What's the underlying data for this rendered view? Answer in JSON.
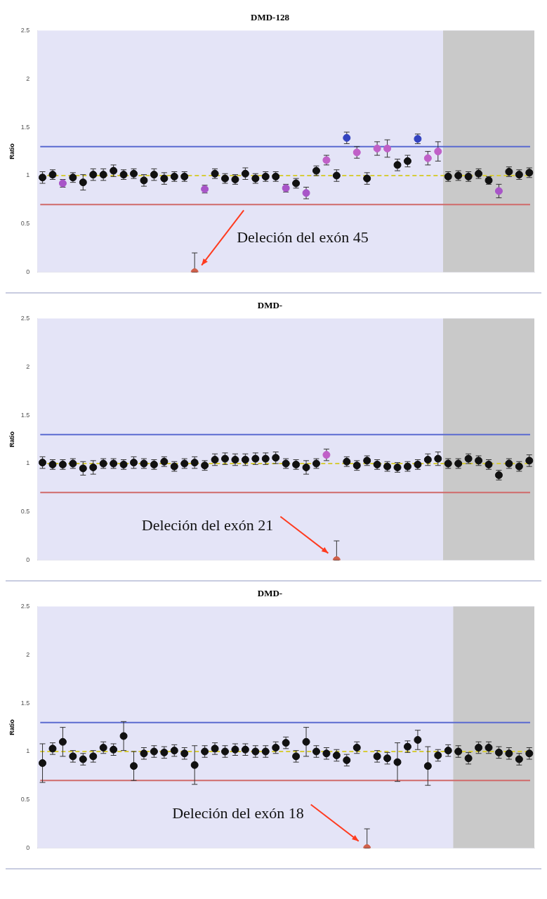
{
  "chart_data": [
    {
      "type": "scatter",
      "title": "DMD-128",
      "ylabel": "Ratio",
      "marker": "circle",
      "grid": false,
      "legend": false,
      "categories": [
        null,
        null,
        null,
        null,
        null,
        null,
        null,
        null,
        null,
        null,
        null,
        null,
        null,
        null,
        null,
        null,
        null,
        null,
        null,
        null,
        null,
        null,
        null,
        null,
        null,
        null,
        null,
        null,
        null,
        null,
        null,
        null,
        null,
        null,
        null,
        null,
        null,
        null,
        null,
        null,
        null,
        null,
        null,
        null,
        null,
        null,
        null,
        null,
        null
      ],
      "series": [
        {
          "values": [
            0.98,
            1.01,
            0.92,
            0.98,
            0.93,
            1.01,
            1.01,
            1.05,
            1.01,
            1.02,
            0.95,
            1.01,
            0.97,
            0.99,
            0.99,
            0,
            0.86,
            1.02,
            0.97,
            0.96,
            1.02,
            0.97,
            0.99,
            0.99,
            0.87,
            0.92,
            0.82,
            1.05,
            1.16,
            1.0,
            1.39,
            1.24,
            0.97,
            1.28,
            1.28,
            1.11,
            1.15,
            1.38,
            1.18,
            1.25,
            0.99,
            1.0,
            0.99,
            1.02,
            0.95,
            0.84,
            1.04,
            1.01,
            1.03
          ],
          "colors": [
            "#111111",
            "#111111",
            "#a855c8",
            "#111111",
            "#111111",
            "#111111",
            "#111111",
            "#111111",
            "#111111",
            "#111111",
            "#111111",
            "#111111",
            "#111111",
            "#111111",
            "#111111",
            "#d0604a",
            "#a855c8",
            "#111111",
            "#111111",
            "#111111",
            "#111111",
            "#111111",
            "#111111",
            "#111111",
            "#a855c8",
            "#111111",
            "#a855c8",
            "#111111",
            "#c060c8",
            "#111111",
            "#3343c0",
            "#c060c8",
            "#111111",
            "#c060c8",
            "#c060c8",
            "#111111",
            "#111111",
            "#3343c0",
            "#c060c8",
            "#c060c8",
            "#111111",
            "#111111",
            "#111111",
            "#111111",
            "#111111",
            "#a855c8",
            "#111111",
            "#111111",
            "#111111"
          ],
          "errors": [
            0.06,
            0.05,
            0.04,
            0.05,
            0.08,
            0.06,
            0.06,
            0.06,
            0.05,
            0.05,
            0.06,
            0.06,
            0.06,
            0.05,
            0.05,
            [
              0,
              0.2
            ],
            0.04,
            0.05,
            0.05,
            0.05,
            0.06,
            0.05,
            0.05,
            0.05,
            0.04,
            0.05,
            0.06,
            0.05,
            0.05,
            0.06,
            0.06,
            0.06,
            0.06,
            0.07,
            0.09,
            0.06,
            0.06,
            0.05,
            0.07,
            0.1,
            0.05,
            0.05,
            0.05,
            0.05,
            0.04,
            0.07,
            0.05,
            0.05,
            0.05
          ]
        }
      ],
      "ylim": [
        0,
        2.5
      ],
      "yticks": [
        0,
        0.5,
        1,
        1.5,
        2,
        2.5
      ],
      "ref_lines": [
        {
          "axis": "y",
          "value": 1.3,
          "color": "#5a6ad0"
        },
        {
          "axis": "y",
          "value": 0.7,
          "color": "#d06a6a"
        },
        {
          "axis": "y",
          "value": 1,
          "color": "#d6cc3a",
          "line_style": "dashed"
        }
      ],
      "annotations": [
        "Deleción del exón 45"
      ]
    },
    {
      "type": "scatter",
      "title": "DMD-",
      "ylabel": "Ratio",
      "marker": "circle",
      "grid": false,
      "legend": false,
      "categories": [
        null,
        null,
        null,
        null,
        null,
        null,
        null,
        null,
        null,
        null,
        null,
        null,
        null,
        null,
        null,
        null,
        null,
        null,
        null,
        null,
        null,
        null,
        null,
        null,
        null,
        null,
        null,
        null,
        null,
        null,
        null,
        null,
        null,
        null,
        null,
        null,
        null,
        null,
        null,
        null,
        null,
        null,
        null,
        null,
        null,
        null,
        null,
        null,
        null
      ],
      "series": [
        {
          "values": [
            1.01,
            0.99,
            0.99,
            1.0,
            0.95,
            0.96,
            1.0,
            1.0,
            0.99,
            1.01,
            1.0,
            0.99,
            1.02,
            0.97,
            1.0,
            1.01,
            0.98,
            1.04,
            1.05,
            1.04,
            1.04,
            1.05,
            1.05,
            1.06,
            1.0,
            0.99,
            0.96,
            1.0,
            1.09,
            0,
            1.02,
            0.98,
            1.03,
            0.99,
            0.97,
            0.96,
            0.97,
            0.99,
            1.04,
            1.05,
            1.0,
            1.0,
            1.05,
            1.03,
            0.99,
            0.88,
            1.0,
            0.97,
            1.03
          ],
          "colors": [
            "#111111",
            "#111111",
            "#111111",
            "#111111",
            "#111111",
            "#111111",
            "#111111",
            "#111111",
            "#111111",
            "#111111",
            "#111111",
            "#111111",
            "#111111",
            "#111111",
            "#111111",
            "#111111",
            "#111111",
            "#111111",
            "#111111",
            "#111111",
            "#111111",
            "#111111",
            "#111111",
            "#111111",
            "#111111",
            "#111111",
            "#111111",
            "#111111",
            "#c060c8",
            "#d0604a",
            "#111111",
            "#111111",
            "#111111",
            "#111111",
            "#111111",
            "#111111",
            "#111111",
            "#111111",
            "#111111",
            "#111111",
            "#111111",
            "#111111",
            "#111111",
            "#111111",
            "#111111",
            "#111111",
            "#111111",
            "#111111",
            "#111111"
          ],
          "errors": [
            0.06,
            0.05,
            0.05,
            0.05,
            0.07,
            0.07,
            0.05,
            0.05,
            0.05,
            0.06,
            0.05,
            0.05,
            0.05,
            0.05,
            0.05,
            0.06,
            0.05,
            0.06,
            0.06,
            0.06,
            0.06,
            0.06,
            0.06,
            0.06,
            0.05,
            0.05,
            0.07,
            0.05,
            0.06,
            [
              0,
              0.2
            ],
            0.05,
            0.05,
            0.05,
            0.05,
            0.05,
            0.05,
            0.05,
            0.05,
            0.06,
            0.07,
            0.05,
            0.05,
            0.05,
            0.05,
            0.05,
            0.05,
            0.05,
            0.05,
            0.06
          ]
        }
      ],
      "ylim": [
        0,
        2.5
      ],
      "yticks": [
        0,
        0.5,
        1,
        1.5,
        2,
        2.5
      ],
      "ref_lines": [
        {
          "axis": "y",
          "value": 1.3,
          "color": "#5a6ad0"
        },
        {
          "axis": "y",
          "value": 0.7,
          "color": "#d06a6a"
        },
        {
          "axis": "y",
          "value": 1,
          "color": "#d6cc3a",
          "line_style": "dashed"
        }
      ],
      "annotations": [
        "Deleción del exón 21"
      ]
    },
    {
      "type": "scatter",
      "title": "DMD-",
      "ylabel": "Ratio",
      "marker": "circle",
      "grid": false,
      "legend": false,
      "categories": [
        null,
        null,
        null,
        null,
        null,
        null,
        null,
        null,
        null,
        null,
        null,
        null,
        null,
        null,
        null,
        null,
        null,
        null,
        null,
        null,
        null,
        null,
        null,
        null,
        null,
        null,
        null,
        null,
        null,
        null,
        null,
        null,
        null,
        null,
        null,
        null,
        null,
        null,
        null,
        null,
        null,
        null,
        null,
        null,
        null,
        null,
        null,
        null,
        null
      ],
      "series": [
        {
          "values": [
            0.88,
            1.03,
            1.1,
            0.95,
            0.92,
            0.95,
            1.04,
            1.02,
            1.16,
            0.85,
            0.98,
            1.0,
            0.99,
            1.01,
            0.98,
            0.86,
            1.0,
            1.03,
            1.0,
            1.02,
            1.02,
            1.0,
            1.0,
            1.04,
            1.09,
            0.95,
            1.1,
            1.0,
            0.98,
            0.96,
            0.91,
            1.04,
            0,
            0.95,
            0.93,
            0.89,
            1.05,
            1.12,
            0.85,
            0.96,
            1.01,
            1.0,
            0.93,
            1.04,
            1.04,
            0.99,
            0.98,
            0.92,
            0.98
          ],
          "colors": [
            "#111111",
            "#111111",
            "#111111",
            "#111111",
            "#111111",
            "#111111",
            "#111111",
            "#111111",
            "#111111",
            "#111111",
            "#111111",
            "#111111",
            "#111111",
            "#111111",
            "#111111",
            "#111111",
            "#111111",
            "#111111",
            "#111111",
            "#111111",
            "#111111",
            "#111111",
            "#111111",
            "#111111",
            "#111111",
            "#111111",
            "#111111",
            "#111111",
            "#111111",
            "#111111",
            "#111111",
            "#111111",
            "#d0604a",
            "#111111",
            "#111111",
            "#111111",
            "#111111",
            "#111111",
            "#111111",
            "#111111",
            "#111111",
            "#111111",
            "#111111",
            "#111111",
            "#111111",
            "#111111",
            "#111111",
            "#111111",
            "#111111"
          ],
          "errors": [
            0.2,
            0.06,
            0.15,
            0.06,
            0.06,
            0.06,
            0.06,
            0.06,
            0.15,
            0.15,
            0.06,
            0.06,
            0.06,
            0.06,
            0.06,
            0.2,
            0.06,
            0.06,
            0.06,
            0.06,
            0.06,
            0.06,
            0.06,
            0.06,
            0.06,
            0.06,
            0.15,
            0.06,
            0.06,
            0.06,
            0.06,
            0.06,
            [
              0,
              0.2
            ],
            0.06,
            0.06,
            0.2,
            0.06,
            0.1,
            0.2,
            0.06,
            0.06,
            0.06,
            0.06,
            0.06,
            0.06,
            0.06,
            0.06,
            0.06,
            0.06
          ]
        }
      ],
      "ylim": [
        0,
        2.5
      ],
      "yticks": [
        0,
        0.5,
        1,
        1.5,
        2,
        2.5
      ],
      "ref_lines": [
        {
          "axis": "y",
          "value": 1.3,
          "color": "#5a6ad0"
        },
        {
          "axis": "y",
          "value": 0.7,
          "color": "#d06a6a"
        },
        {
          "axis": "y",
          "value": 1,
          "color": "#d6cc3a",
          "line_style": "dashed"
        }
      ],
      "annotations": [
        "Deleción del exón 18"
      ]
    }
  ]
}
